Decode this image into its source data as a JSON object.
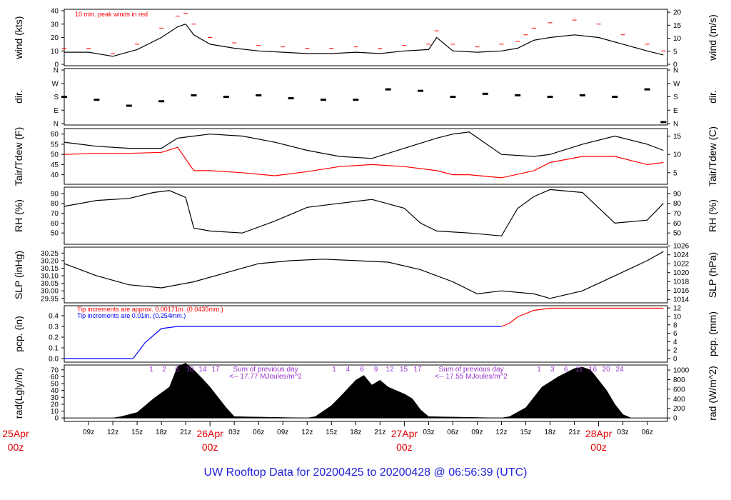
{
  "title": "UW Rooftop Data for 20200425  to  20200428 @ 06:56:39  (UTC)",
  "colors": {
    "wind": "#000000",
    "gust": "#ff0000",
    "dew": "#ff0000",
    "precip_old": "#0000ff",
    "precip_new": "#ff0000",
    "title": "#1f1fd8",
    "day_label": "#e00000",
    "hour_marks": "#9a32cd"
  },
  "x_axis": {
    "ticks": [
      "09z",
      "12z",
      "15z",
      "18z",
      "21z",
      "03z",
      "06z",
      "09z",
      "12z",
      "15z",
      "18z",
      "21z",
      "03z",
      "06z",
      "09z",
      "12z",
      "15z",
      "18z",
      "21z",
      "03z",
      "06z"
    ],
    "day_labels": [
      {
        "top": "25Apr",
        "bottom": "00z"
      },
      {
        "top": "26Apr",
        "bottom": "00z"
      },
      {
        "top": "27Apr",
        "bottom": "00z"
      },
      {
        "top": "28Apr",
        "bottom": "00z"
      }
    ]
  },
  "panels": [
    {
      "id": "wind",
      "left_label": "wind (kts)",
      "right_label": "wind (m/s)",
      "left_ticks": [
        "0",
        "10",
        "20",
        "30",
        "40"
      ],
      "right_ticks": [
        "0",
        "5",
        "10",
        "15",
        "20"
      ],
      "note": "10 min. peak winds in red"
    },
    {
      "id": "dir",
      "left_label": "dir.",
      "right_label": "dir.",
      "left_ticks": [
        "N",
        "E",
        "S",
        "W",
        "N"
      ],
      "right_ticks": [
        "N",
        "E",
        "S",
        "W",
        "N"
      ]
    },
    {
      "id": "temp",
      "left_label": "Tair/Tdew (F)",
      "right_label": "Tair/Tdew (C)",
      "left_ticks": [
        "40",
        "45",
        "50",
        "55",
        "60"
      ],
      "right_ticks": [
        "5",
        "10",
        "15"
      ]
    },
    {
      "id": "rh",
      "left_label": "RH (%)",
      "right_label": "RH (%)",
      "left_ticks": [
        "50",
        "60",
        "70",
        "80",
        "90"
      ],
      "right_ticks": [
        "50",
        "60",
        "70",
        "80",
        "90"
      ]
    },
    {
      "id": "slp",
      "left_label": "SLP (inHg)",
      "right_label": "SLP (hPa)",
      "left_ticks": [
        "29.95",
        "30.00",
        "30.05",
        "30.10",
        "30.15",
        "30.20",
        "30.25"
      ],
      "right_ticks": [
        "1014",
        "1016",
        "1018",
        "1020",
        "1022",
        "1024",
        "1026"
      ]
    },
    {
      "id": "pcp",
      "left_label": "pcp. (in)",
      "right_label": "pcp. (mm)",
      "left_ticks": [
        "0.0",
        "0.1",
        "0.2",
        "0.3",
        "0.4"
      ],
      "right_ticks": [
        "0",
        "2",
        "4",
        "6",
        "8",
        "10",
        "12"
      ],
      "note1": "Tip increments are approx. 0.00171in. (0.0435mm.)",
      "note2": "Tip increments are 0.01in. (0.254mm.)"
    },
    {
      "id": "rad",
      "left_label": "rad(Lgly/hr)",
      "right_label": "rad (W/m^2)",
      "left_ticks": [
        "0",
        "10",
        "20",
        "30",
        "40",
        "50",
        "60",
        "70"
      ],
      "right_ticks": [
        "0",
        "200",
        "400",
        "600",
        "800",
        "1000"
      ],
      "hours": [
        {
          "h": [
            "1",
            "2",
            "6",
            "10",
            "14",
            "17"
          ]
        },
        {
          "h": [
            "1",
            "4",
            "6",
            "9",
            "12",
            "15",
            "17"
          ]
        },
        {
          "h": [
            "1",
            "3",
            "6",
            "11",
            "16",
            "20",
            "24"
          ]
        }
      ],
      "sums": [
        {
          "line1": "Sum of previous day",
          "line2": "<-- 17.77 MJoules/m^2"
        },
        {
          "line1": "Sum of previous day",
          "line2": "<-- 17.55 MJoules/m^2"
        }
      ]
    }
  ],
  "chart_data": [
    {
      "type": "line",
      "title": "",
      "ylabel": "wind (kts)",
      "y2label": "wind (m/s)",
      "ylim": [
        0,
        40
      ],
      "x_hours_since_25Apr00z": [
        6,
        9,
        12,
        15,
        18,
        20,
        21,
        22,
        24,
        27,
        30,
        33,
        36,
        39,
        42,
        45,
        48,
        51,
        52,
        54,
        57,
        60,
        62,
        63,
        64,
        66,
        69,
        72,
        75,
        78,
        80
      ],
      "series": [
        {
          "name": "wind",
          "values": [
            9,
            9,
            6,
            11,
            20,
            28,
            30,
            22,
            15,
            12,
            10,
            9,
            8,
            8,
            9,
            8,
            10,
            11,
            20,
            10,
            9,
            10,
            12,
            15,
            18,
            20,
            22,
            20,
            15,
            10,
            7
          ]
        },
        {
          "name": "10 min. peak winds in red",
          "values": [
            12,
            12,
            8,
            15,
            27,
            36,
            38,
            30,
            20,
            16,
            14,
            13,
            12,
            12,
            13,
            12,
            14,
            15,
            25,
            15,
            13,
            15,
            17,
            22,
            27,
            31,
            33,
            30,
            22,
            15,
            10
          ]
        }
      ]
    },
    {
      "type": "scatter",
      "ylabel": "dir.",
      "y_ticks": [
        "N",
        "E",
        "S",
        "W",
        "N"
      ],
      "x_hours_since_25Apr00z": [
        6,
        10,
        14,
        18,
        22,
        26,
        30,
        34,
        38,
        42,
        46,
        50,
        54,
        58,
        62,
        66,
        70,
        74,
        78,
        80
      ],
      "values_deg": [
        180,
        160,
        120,
        150,
        190,
        180,
        190,
        170,
        160,
        160,
        230,
        220,
        180,
        200,
        190,
        180,
        190,
        180,
        230,
        10
      ]
    },
    {
      "type": "line",
      "ylabel": "Tair/Tdew (F)",
      "y2label": "Tair/Tdew (C)",
      "ylim": [
        36,
        62
      ],
      "x_hours_since_25Apr00z": [
        6,
        10,
        14,
        18,
        20,
        22,
        24,
        28,
        32,
        36,
        40,
        44,
        48,
        52,
        54,
        56,
        60,
        64,
        66,
        70,
        74,
        78,
        80
      ],
      "series": [
        {
          "name": "Tair",
          "values": [
            56,
            54,
            53,
            53,
            58,
            59,
            60,
            59,
            56,
            52,
            49,
            48,
            53,
            58,
            60,
            61,
            50,
            49,
            50,
            55,
            59,
            55,
            52
          ]
        },
        {
          "name": "Tdew",
          "values": [
            50,
            50.5,
            50.5,
            51,
            53.5,
            42,
            42,
            41,
            39.5,
            41.5,
            44,
            45,
            44,
            42,
            40,
            40,
            38.5,
            42,
            46,
            49,
            49,
            45,
            46
          ]
        }
      ]
    },
    {
      "type": "line",
      "ylabel": "RH (%)",
      "y2label": "RH (%)",
      "ylim": [
        40,
        95
      ],
      "x_hours_since_25Apr00z": [
        6,
        10,
        14,
        17,
        19,
        21,
        22,
        24,
        28,
        32,
        36,
        40,
        44,
        48,
        50,
        52,
        56,
        60,
        62,
        64,
        66,
        70,
        74,
        78,
        80
      ],
      "series": [
        {
          "name": "RH",
          "values": [
            77,
            83,
            85,
            91,
            93,
            86,
            55,
            52,
            50,
            62,
            76,
            80,
            84,
            75,
            60,
            52,
            50,
            47,
            75,
            87,
            94,
            91,
            60,
            63,
            80
          ]
        }
      ]
    },
    {
      "type": "line",
      "ylabel": "SLP (inHg)",
      "y2label": "SLP (hPa)",
      "ylim": [
        29.93,
        30.28
      ],
      "x_hours_since_25Apr00z": [
        6,
        10,
        14,
        18,
        22,
        26,
        30,
        34,
        38,
        42,
        46,
        50,
        54,
        57,
        60,
        64,
        66,
        70,
        74,
        78,
        80
      ],
      "series": [
        {
          "name": "SLP",
          "values": [
            30.18,
            30.1,
            30.04,
            30.02,
            30.06,
            30.12,
            30.18,
            30.2,
            30.21,
            30.2,
            30.19,
            30.14,
            30.06,
            29.98,
            30.0,
            29.98,
            29.95,
            30.0,
            30.1,
            30.2,
            30.26
          ]
        }
      ]
    },
    {
      "type": "line",
      "ylabel": "pcp. (in)",
      "y2label": "pcp. (mm)",
      "ylim": [
        -0.02,
        0.48
      ],
      "x_hours_since_25Apr00z": [
        6,
        12,
        14.5,
        16,
        18,
        20,
        24,
        36,
        48,
        60,
        61,
        62,
        63,
        64,
        66,
        72,
        80
      ],
      "series": [
        {
          "name": "Tip increments are 0.01in. (0.254mm.)",
          "values": [
            0,
            0,
            0,
            0.15,
            0.28,
            0.3,
            0.3,
            0.3,
            0.3,
            0.3,
            null,
            null,
            null,
            null,
            null,
            null,
            null
          ]
        },
        {
          "name": "Tip increments are approx. 0.00171in. (0.0435mm.)",
          "values": [
            null,
            null,
            null,
            null,
            null,
            null,
            null,
            null,
            null,
            0.3,
            0.33,
            0.39,
            0.42,
            0.45,
            0.47,
            0.47,
            0.47
          ]
        }
      ]
    },
    {
      "type": "area",
      "ylabel": "rad(Lgly/hr)",
      "y2label": "rad (W/m^2)",
      "ylim": [
        -3,
        75
      ],
      "x_hours_since_25Apr00z": [
        12,
        13,
        15,
        17,
        19,
        20,
        21,
        22,
        23,
        24,
        26,
        27,
        36,
        37,
        39,
        40,
        42,
        43,
        44,
        45,
        46,
        47,
        48,
        49,
        50,
        51,
        60,
        61,
        63,
        65,
        67,
        68,
        69,
        70,
        71,
        72,
        73,
        74,
        75,
        76
      ],
      "series": [
        {
          "name": "rad",
          "values": [
            0,
            2,
            8,
            28,
            45,
            75,
            80,
            70,
            58,
            45,
            15,
            2,
            0,
            2,
            18,
            30,
            55,
            62,
            48,
            55,
            45,
            40,
            35,
            28,
            12,
            2,
            0,
            2,
            15,
            45,
            60,
            66,
            72,
            74,
            70,
            55,
            40,
            20,
            5,
            0
          ]
        }
      ]
    }
  ]
}
